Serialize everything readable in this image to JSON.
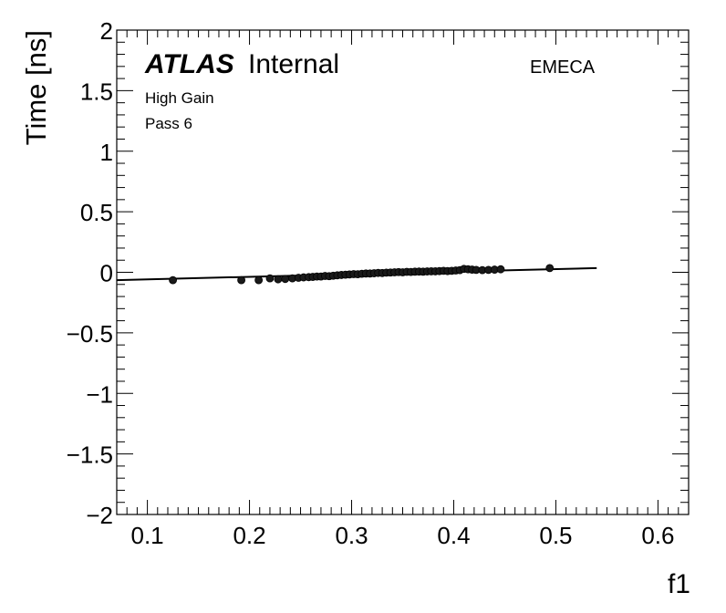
{
  "chart_data": {
    "type": "scatter",
    "title": "",
    "xlabel": "f1",
    "ylabel": "Time [ns]",
    "xlim": [
      0.07,
      0.63
    ],
    "ylim": [
      -2,
      2
    ],
    "x_ticks": [
      0.1,
      0.2,
      0.3,
      0.4,
      0.5,
      0.6
    ],
    "x_tick_labels": [
      "0.1",
      "0.2",
      "0.3",
      "0.4",
      "0.5",
      "0.6"
    ],
    "y_ticks": [
      -2,
      -1.5,
      -1,
      -0.5,
      0,
      0.5,
      1,
      1.5,
      2
    ],
    "y_tick_labels": [
      "−2",
      "−1.5",
      "−1",
      "−0.5",
      "0",
      "0.5",
      "1",
      "1.5",
      "2"
    ],
    "annotations": {
      "atlas": "ATLAS",
      "internal": "Internal",
      "region": "EMECA",
      "gain": "High Gain",
      "pass": "Pass 6"
    },
    "fit_line": {
      "x": [
        0.07,
        0.54
      ],
      "y": [
        -0.065,
        0.035
      ]
    },
    "points": {
      "x": [
        0.125,
        0.192,
        0.209,
        0.22,
        0.228,
        0.235,
        0.242,
        0.248,
        0.253,
        0.258,
        0.262,
        0.266,
        0.27,
        0.274,
        0.278,
        0.282,
        0.286,
        0.29,
        0.294,
        0.298,
        0.302,
        0.306,
        0.31,
        0.314,
        0.318,
        0.322,
        0.326,
        0.33,
        0.334,
        0.338,
        0.342,
        0.346,
        0.35,
        0.354,
        0.358,
        0.362,
        0.366,
        0.37,
        0.374,
        0.378,
        0.382,
        0.386,
        0.39,
        0.394,
        0.398,
        0.402,
        0.406,
        0.41,
        0.414,
        0.418,
        0.422,
        0.428,
        0.434,
        0.44,
        0.446,
        0.494
      ],
      "y": [
        -0.065,
        -0.065,
        -0.065,
        -0.05,
        -0.058,
        -0.055,
        -0.05,
        -0.045,
        -0.042,
        -0.04,
        -0.038,
        -0.035,
        -0.035,
        -0.03,
        -0.032,
        -0.028,
        -0.025,
        -0.022,
        -0.02,
        -0.018,
        -0.015,
        -0.016,
        -0.012,
        -0.01,
        -0.01,
        -0.008,
        -0.005,
        -0.006,
        -0.003,
        -0.002,
        0.0,
        0.002,
        0.0,
        0.004,
        0.003,
        0.005,
        0.006,
        0.005,
        0.007,
        0.008,
        0.008,
        0.01,
        0.012,
        0.01,
        0.012,
        0.015,
        0.018,
        0.028,
        0.025,
        0.022,
        0.02,
        0.018,
        0.02,
        0.022,
        0.025,
        0.035
      ]
    }
  }
}
